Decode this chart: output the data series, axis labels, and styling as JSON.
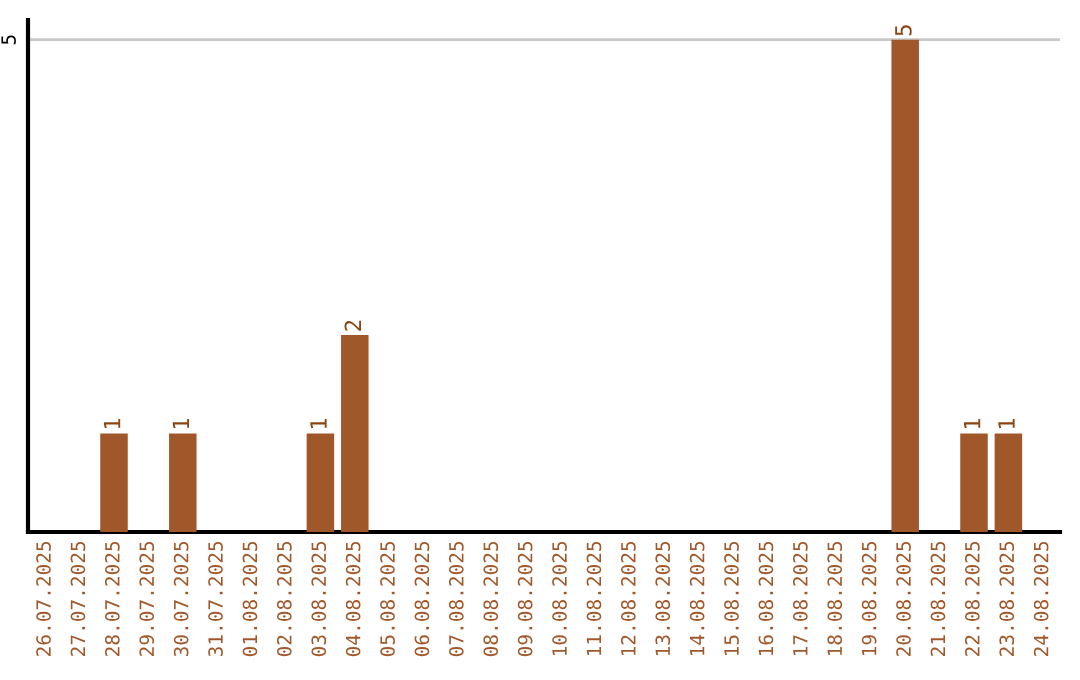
{
  "chart_data": {
    "type": "bar",
    "categories": [
      "26.07.2025",
      "27.07.2025",
      "28.07.2025",
      "29.07.2025",
      "30.07.2025",
      "31.07.2025",
      "01.08.2025",
      "02.08.2025",
      "03.08.2025",
      "04.08.2025",
      "05.08.2025",
      "06.08.2025",
      "07.08.2025",
      "08.08.2025",
      "09.08.2025",
      "10.08.2025",
      "11.08.2025",
      "12.08.2025",
      "13.08.2025",
      "14.08.2025",
      "15.08.2025",
      "16.08.2025",
      "17.08.2025",
      "18.08.2025",
      "19.08.2025",
      "20.08.2025",
      "21.08.2025",
      "22.08.2025",
      "23.08.2025",
      "24.08.2025"
    ],
    "values": [
      0,
      0,
      1,
      0,
      1,
      0,
      0,
      0,
      1,
      2,
      0,
      0,
      0,
      0,
      0,
      0,
      0,
      0,
      0,
      0,
      0,
      0,
      0,
      0,
      0,
      5,
      0,
      1,
      1,
      0
    ],
    "value_labels": [
      null,
      null,
      "1",
      null,
      "1",
      null,
      null,
      null,
      "1",
      "2",
      null,
      null,
      null,
      null,
      null,
      null,
      null,
      null,
      null,
      null,
      null,
      null,
      null,
      null,
      null,
      "5",
      null,
      "1",
      "1",
      null
    ],
    "color": "#a0582a",
    "ylim": [
      0,
      5.2
    ],
    "yticks": [
      5
    ],
    "grid": "y"
  }
}
